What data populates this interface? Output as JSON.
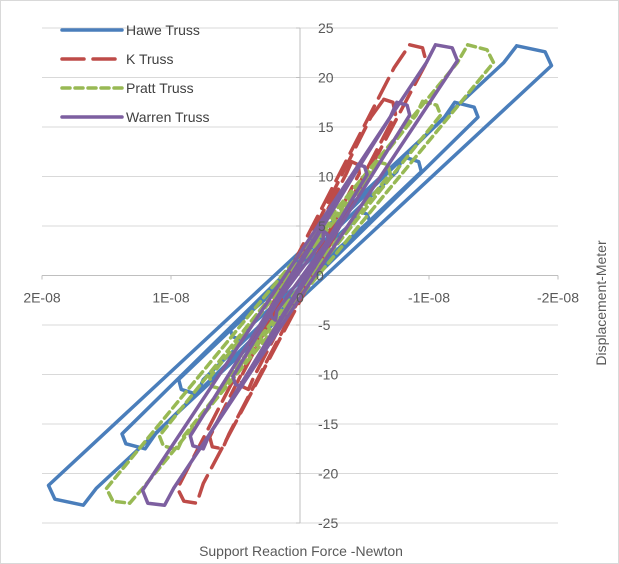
{
  "chart_data": {
    "type": "line",
    "title": "",
    "xlabel": "Support Reaction Force -Newton",
    "ylabel": "Displacement-Meter",
    "x_reversed": true,
    "xlim": [
      2e-08,
      -2e-08
    ],
    "ylim": [
      -25,
      25
    ],
    "x_ticks": [
      2e-08,
      1e-08,
      0,
      -1e-08,
      -2e-08
    ],
    "x_tick_labels": [
      "2E-08",
      "1E-08",
      "0",
      "-1E-08",
      "-2E-08"
    ],
    "y_ticks": [
      -25,
      -20,
      -15,
      -10,
      -5,
      0,
      5,
      10,
      15,
      20,
      25
    ],
    "y_tick_labels": [
      "-25",
      "-20",
      "-15",
      "-10",
      "-5",
      "0",
      "5",
      "10",
      "15",
      "20",
      "25"
    ],
    "grid": "horizontal",
    "legend_position": "top-left",
    "series": [
      {
        "name": "Hawe Truss",
        "color": "#4a7ebb",
        "dash": "solid",
        "loops": [
          [
            [
              -1.68e-08,
              23.2
            ],
            [
              -1.9e-08,
              22.6
            ],
            [
              -1.95e-08,
              21.2
            ],
            [
              1.58e-08,
              -21.5
            ],
            [
              1.68e-08,
              -23.2
            ],
            [
              1.9e-08,
              -22.6
            ],
            [
              1.95e-08,
              -21.2
            ],
            [
              -1.58e-08,
              21.5
            ],
            [
              -1.68e-08,
              23.2
            ]
          ],
          [
            [
              -1.2e-08,
              17.5
            ],
            [
              -1.35e-08,
              17.0
            ],
            [
              -1.38e-08,
              16.0
            ],
            [
              1.12e-08,
              -16.0
            ],
            [
              1.2e-08,
              -17.5
            ],
            [
              1.35e-08,
              -17.0
            ],
            [
              1.38e-08,
              -16.0
            ],
            [
              -1.12e-08,
              16.0
            ],
            [
              -1.2e-08,
              17.5
            ]
          ],
          [
            [
              -8e-09,
              12.0
            ],
            [
              -9.2e-09,
              11.5
            ],
            [
              -9.4e-09,
              10.5
            ],
            [
              7.5e-09,
              -10.5
            ],
            [
              8e-09,
              -12.0
            ],
            [
              9.2e-09,
              -11.5
            ],
            [
              9.4e-09,
              -10.5
            ],
            [
              -7.5e-09,
              10.5
            ],
            [
              -8e-09,
              12.0
            ]
          ],
          [
            [
              -4.5e-09,
              6.5
            ],
            [
              -5.2e-09,
              6.2
            ],
            [
              -5.4e-09,
              5.5
            ],
            [
              4.2e-09,
              -5.5
            ],
            [
              4.5e-09,
              -6.5
            ],
            [
              5.2e-09,
              -6.2
            ],
            [
              5.4e-09,
              -5.5
            ],
            [
              -4.2e-09,
              5.5
            ],
            [
              -4.5e-09,
              6.5
            ]
          ]
        ]
      },
      {
        "name": "K Truss",
        "color": "#be4b48",
        "dash": "long-dash",
        "loops": [
          [
            [
              -8.5e-09,
              23.3
            ],
            [
              -9.5e-09,
              23.0
            ],
            [
              -9.8e-09,
              21.5
            ],
            [
              7.5e-09,
              -21.0
            ],
            [
              8e-09,
              -23.0
            ],
            [
              9e-09,
              -22.8
            ],
            [
              9.5e-09,
              -21.5
            ],
            [
              -7.3e-09,
              21.0
            ],
            [
              -8.5e-09,
              23.3
            ]
          ],
          [
            [
              -6.5e-09,
              17.8
            ],
            [
              -7.2e-09,
              17.5
            ],
            [
              -7.4e-09,
              16.3
            ],
            [
              5.5e-09,
              -16.0
            ],
            [
              6e-09,
              -17.5
            ],
            [
              6.8e-09,
              -17.3
            ],
            [
              7e-09,
              -16.3
            ],
            [
              -5.5e-09,
              16.0
            ],
            [
              -6.5e-09,
              17.8
            ]
          ],
          [
            [
              -4e-09,
              11.5
            ],
            [
              -4.5e-09,
              11.2
            ],
            [
              -4.6e-09,
              10.3
            ],
            [
              3.6e-09,
              -10.3
            ],
            [
              4e-09,
              -11.5
            ],
            [
              4.5e-09,
              -11.2
            ],
            [
              4.6e-09,
              -10.3
            ],
            [
              -3.6e-09,
              10.3
            ],
            [
              -4e-09,
              11.5
            ]
          ]
        ]
      },
      {
        "name": "Pratt Truss",
        "color": "#98b954",
        "dash": "short-dash",
        "loops": [
          [
            [
              -1.3e-08,
              23.3
            ],
            [
              -1.45e-08,
              22.8
            ],
            [
              -1.5e-08,
              21.5
            ],
            [
              1.22e-08,
              -21.5
            ],
            [
              1.32e-08,
              -23.0
            ],
            [
              1.45e-08,
              -22.8
            ],
            [
              1.5e-08,
              -21.5
            ],
            [
              -1.22e-08,
              21.5
            ],
            [
              -1.3e-08,
              23.3
            ]
          ],
          [
            [
              -9.5e-09,
              17.6
            ],
            [
              -1.06e-08,
              17.2
            ],
            [
              -1.09e-08,
              16.2
            ],
            [
              9e-09,
              -16.2
            ],
            [
              9.5e-09,
              -17.6
            ],
            [
              1.06e-08,
              -17.2
            ],
            [
              1.09e-08,
              -16.2
            ],
            [
              -9e-09,
              16.2
            ],
            [
              -9.5e-09,
              17.6
            ]
          ],
          [
            [
              -6e-09,
              11.5
            ],
            [
              -6.8e-09,
              11.2
            ],
            [
              -7e-09,
              10.3
            ],
            [
              5.6e-09,
              -10.3
            ],
            [
              6e-09,
              -11.5
            ],
            [
              6.8e-09,
              -11.2
            ],
            [
              7e-09,
              -10.3
            ],
            [
              -5.6e-09,
              10.3
            ],
            [
              -6e-09,
              11.5
            ]
          ]
        ]
      },
      {
        "name": "Warren Truss",
        "color": "#7d5fa0",
        "dash": "solid",
        "loops": [
          [
            [
              -1.05e-08,
              23.3
            ],
            [
              -1.18e-08,
              23.0
            ],
            [
              -1.22e-08,
              21.7
            ],
            [
              9.8e-09,
              -21.5
            ],
            [
              1.05e-08,
              -23.2
            ],
            [
              1.18e-08,
              -23.0
            ],
            [
              1.22e-08,
              -21.7
            ],
            [
              -9.8e-09,
              21.5
            ],
            [
              -1.05e-08,
              23.3
            ]
          ],
          [
            [
              -7.5e-09,
              17.5
            ],
            [
              -8.3e-09,
              17.2
            ],
            [
              -8.5e-09,
              16.2
            ],
            [
              7e-09,
              -16.0
            ],
            [
              7.5e-09,
              -17.5
            ],
            [
              8.3e-09,
              -17.2
            ],
            [
              8.5e-09,
              -16.2
            ],
            [
              -7e-09,
              16.0
            ],
            [
              -7.5e-09,
              17.5
            ]
          ],
          [
            [
              -4.5e-09,
              11.2
            ],
            [
              -5e-09,
              11.0
            ],
            [
              -5.2e-09,
              10.2
            ],
            [
              4.2e-09,
              -10.2
            ],
            [
              4.5e-09,
              -11.2
            ],
            [
              5e-09,
              -11.0
            ],
            [
              5.2e-09,
              -10.2
            ],
            [
              -4.2e-09,
              10.2
            ],
            [
              -4.5e-09,
              11.2
            ]
          ],
          [
            [
              -1.8e-09,
              4.5
            ],
            [
              -2.1e-09,
              4.2
            ],
            [
              -2.2e-09,
              3.6
            ],
            [
              1.8e-09,
              -3.6
            ],
            [
              1.9e-09,
              -4.5
            ],
            [
              2.2e-09,
              -4.2
            ],
            [
              2.3e-09,
              -3.6
            ],
            [
              -1.8e-09,
              3.6
            ],
            [
              -1.8e-09,
              4.5
            ]
          ]
        ]
      }
    ]
  }
}
